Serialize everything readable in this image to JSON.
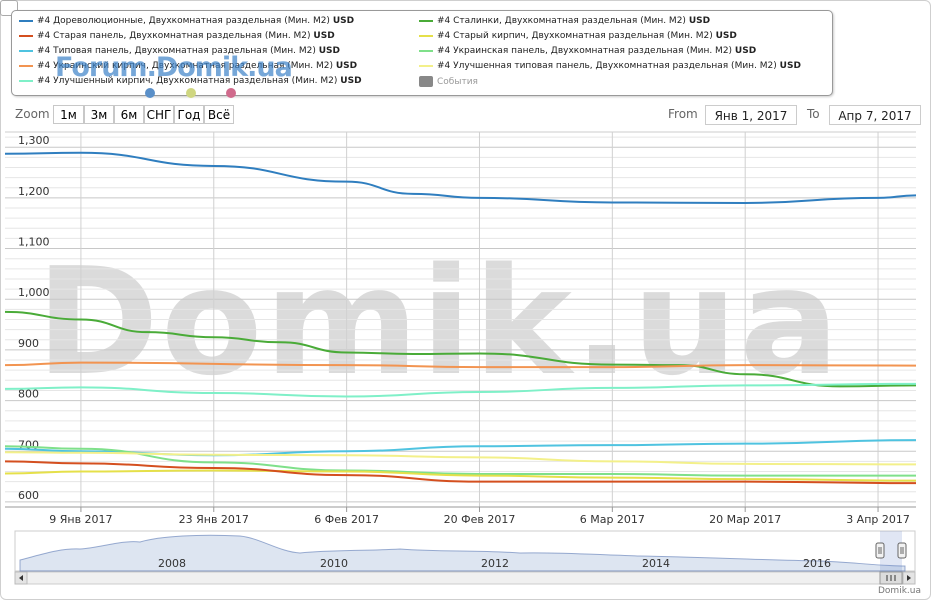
{
  "legend": {
    "items": [
      {
        "name": "#4 Дореволюционные, Двухкомнатная раздельная (Мин. M2)",
        "unit": "USD",
        "color": "#2f7ebf"
      },
      {
        "name": "#4 Старая панель, Двухкомнатная раздельная (Мин. M2)",
        "unit": "USD",
        "color": "#d44f1f"
      },
      {
        "name": "#4 Типовая панель, Двухкомнатная раздельная (Мин. M2)",
        "unit": "USD",
        "color": "#4fc3e0"
      },
      {
        "name": "#4 Украинский кирпич, Двухкомнатная раздельная (Мин. M2)",
        "unit": "USD",
        "color": "#f29451"
      },
      {
        "name": "#4 Улучшенный кирпич, Двухкомнатная раздельная (Мин. M2)",
        "unit": "USD",
        "color": "#7ff0c8"
      },
      {
        "name": "#4 Сталинки, Двухкомнатная раздельная (Мин. M2)",
        "unit": "USD",
        "color": "#4aab38"
      },
      {
        "name": "#4 Старый кирпич, Двухкомнатная раздельная (Мин. M2)",
        "unit": "USD",
        "color": "#e5e04a"
      },
      {
        "name": "#4 Украинская панель, Двухкомнатная раздельная (Мин. M2)",
        "unit": "USD",
        "color": "#7fe08a"
      },
      {
        "name": "#4 Улучшенная типовая панель, Двухкомнатная раздельная (Мин. M2)",
        "unit": "USD",
        "color": "#f3f08a"
      },
      {
        "name": "События",
        "unit": "",
        "color": "#888888"
      }
    ]
  },
  "watermark_small": "Forum.Domik.ua",
  "watermark_big": "Domik.ua",
  "dot_colors": [
    "#5a8fc8",
    "#cfd680",
    "#d06a8c"
  ],
  "zoom": {
    "label": "Zoom",
    "buttons": [
      "1м",
      "3м",
      "6м",
      "СНГ",
      "Год",
      "Всё"
    ]
  },
  "range": {
    "from_label": "From",
    "from_value": "Янв 1, 2017",
    "to_label": "To",
    "to_value": "Апр 7, 2017"
  },
  "navigator": {
    "year_labels": [
      "2008",
      "2010",
      "2012",
      "2014",
      "2016"
    ]
  },
  "credit": "Domik.ua",
  "chart_data": {
    "type": "line",
    "x_tick_labels": [
      "9 Янв 2017",
      "23 Янв 2017",
      "6 Фев 2017",
      "20 Фев 2017",
      "6 Мар 2017",
      "20 Мар 2017",
      "3 Апр 2017"
    ],
    "x_range": [
      "2017-01-01",
      "2017-04-07"
    ],
    "y_tick_labels": [
      "600",
      "700",
      "800",
      "900",
      "1,000",
      "1,100",
      "1,200",
      "1,300"
    ],
    "ylim": [
      590,
      1330
    ],
    "grid": true,
    "legend_position": "top",
    "series": [
      {
        "name": "#4 Дореволюционные, Двухкомнатная раздельная (Мин. M2)",
        "color": "#2f7ebf",
        "x": [
          "2017-01-01",
          "2017-01-09",
          "2017-01-23",
          "2017-02-06",
          "2017-02-13",
          "2017-02-20",
          "2017-03-06",
          "2017-03-20",
          "2017-04-03",
          "2017-04-07"
        ],
        "values": [
          1287,
          1289,
          1263,
          1232,
          1208,
          1200,
          1191,
          1190,
          1200,
          1205
        ]
      },
      {
        "name": "#4 Сталинки, Двухкомнатная раздельная (Мин. M2)",
        "color": "#4aab38",
        "x": [
          "2017-01-01",
          "2017-01-09",
          "2017-01-16",
          "2017-01-23",
          "2017-01-30",
          "2017-02-06",
          "2017-02-13",
          "2017-02-20",
          "2017-03-06",
          "2017-03-13",
          "2017-03-20",
          "2017-03-30",
          "2017-04-07"
        ],
        "values": [
          975,
          960,
          935,
          925,
          915,
          895,
          892,
          893,
          871,
          870,
          852,
          828,
          830
        ]
      },
      {
        "name": "#4 Украинский кирпич, Двухкомнатная раздельная (Мин. M2)",
        "color": "#f29451",
        "x": [
          "2017-01-01",
          "2017-01-09",
          "2017-02-06",
          "2017-02-20",
          "2017-03-06",
          "2017-03-20",
          "2017-04-07"
        ],
        "values": [
          870,
          875,
          870,
          866,
          866,
          870,
          869
        ]
      },
      {
        "name": "#4 Улучшенный кирпич, Двухкомнатная раздельная (Мин. M2)",
        "color": "#7ff0c8",
        "x": [
          "2017-01-01",
          "2017-01-09",
          "2017-01-23",
          "2017-02-06",
          "2017-02-20",
          "2017-03-06",
          "2017-03-20",
          "2017-04-07"
        ],
        "values": [
          823,
          826,
          815,
          808,
          817,
          825,
          830,
          833
        ]
      },
      {
        "name": "#4 Типовая панель, Двухкомнатная раздельная (Мин. M2)",
        "color": "#4fc3e0",
        "x": [
          "2017-01-01",
          "2017-01-09",
          "2017-01-23",
          "2017-02-06",
          "2017-02-20",
          "2017-03-06",
          "2017-03-20",
          "2017-04-07"
        ],
        "values": [
          705,
          700,
          692,
          700,
          710,
          712,
          715,
          722
        ]
      },
      {
        "name": "#4 Украинская панель, Двухкомнатная раздельная (Мин. M2)",
        "color": "#7fe08a",
        "x": [
          "2017-01-01",
          "2017-01-09",
          "2017-01-23",
          "2017-02-06",
          "2017-02-20",
          "2017-03-06",
          "2017-03-20",
          "2017-04-07"
        ],
        "values": [
          710,
          705,
          678,
          662,
          655,
          655,
          652,
          652
        ]
      },
      {
        "name": "#4 Улучшенная типовая панель, Двухкомнатная раздельная (Мин. M2)",
        "color": "#f3f08a",
        "x": [
          "2017-01-01",
          "2017-01-09",
          "2017-01-23",
          "2017-02-06",
          "2017-02-20",
          "2017-03-06",
          "2017-03-20",
          "2017-04-07"
        ],
        "values": [
          698,
          697,
          693,
          692,
          688,
          680,
          675,
          674
        ]
      },
      {
        "name": "#4 Старый кирпич, Двухкомнатная раздельная (Мин. M2)",
        "color": "#e5e04a",
        "x": [
          "2017-01-01",
          "2017-01-09",
          "2017-01-23",
          "2017-02-06",
          "2017-02-20",
          "2017-03-06",
          "2017-03-20",
          "2017-04-07"
        ],
        "values": [
          656,
          660,
          662,
          660,
          652,
          648,
          645,
          642
        ]
      },
      {
        "name": "#4 Старая панель, Двухкомнатная раздельная (Мин. M2)",
        "color": "#d44f1f",
        "x": [
          "2017-01-01",
          "2017-01-09",
          "2017-01-23",
          "2017-02-06",
          "2017-02-20",
          "2017-03-06",
          "2017-03-20",
          "2017-04-07"
        ],
        "values": [
          680,
          676,
          667,
          653,
          640,
          640,
          640,
          637
        ]
      }
    ]
  }
}
